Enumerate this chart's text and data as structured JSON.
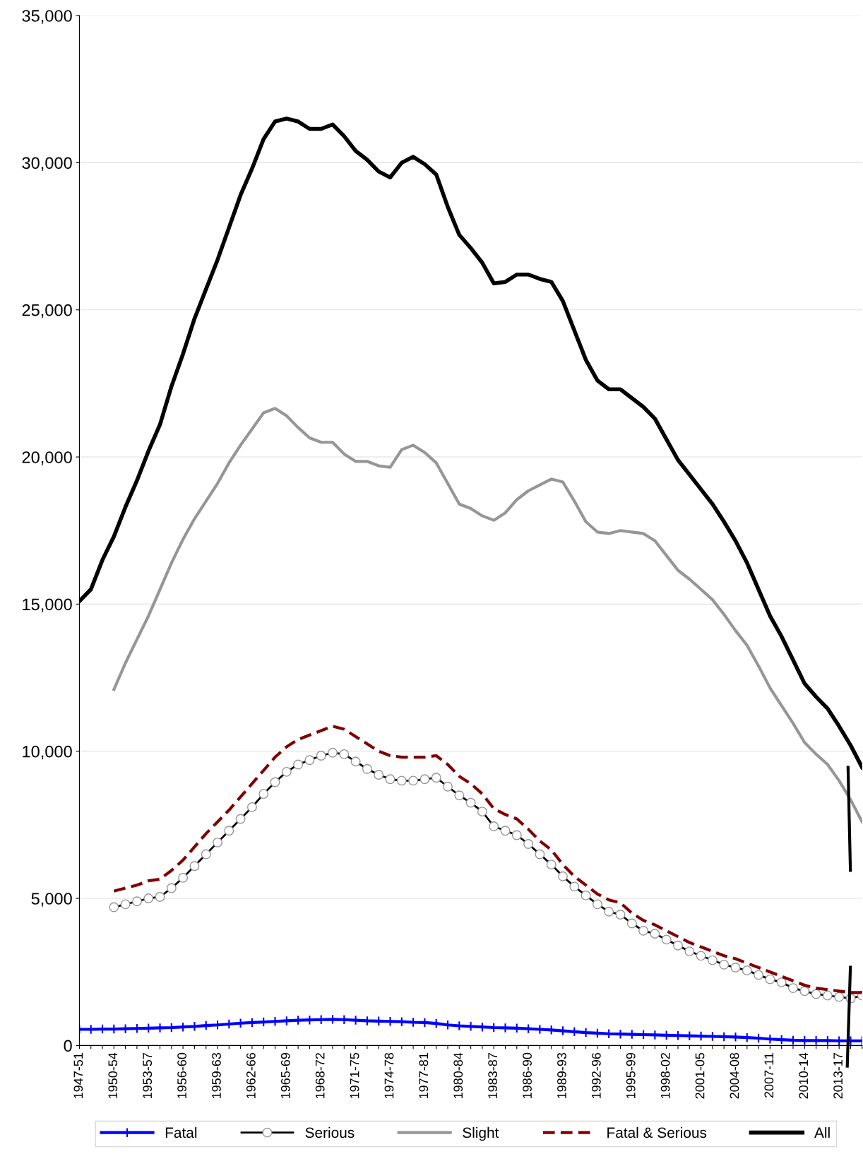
{
  "chart_data": {
    "type": "line",
    "categories": [
      "1947-51",
      null,
      null,
      "1950-54",
      null,
      null,
      "1953-57",
      null,
      null,
      "1956-60",
      null,
      null,
      "1959-63",
      null,
      null,
      "1962-66",
      null,
      null,
      "1965-69",
      null,
      null,
      "1968-72",
      null,
      null,
      "1971-75",
      null,
      null,
      "1974-78",
      null,
      null,
      "1977-81",
      null,
      null,
      "1980-84",
      null,
      null,
      "1983-87",
      null,
      null,
      "1986-90",
      null,
      null,
      "1989-93",
      null,
      null,
      "1992-96",
      null,
      null,
      "1995-99",
      null,
      null,
      "1998-02",
      null,
      null,
      "2001-05",
      null,
      null,
      "2004-08",
      null,
      null,
      "2007-11",
      null,
      null,
      "2010-14",
      null,
      null,
      "2013-17",
      null,
      null
    ],
    "series": [
      {
        "name": "Fatal",
        "color": "#0000ff",
        "marker": "cross",
        "line_style": "solid",
        "values": [
          550,
          550,
          560,
          560,
          570,
          580,
          590,
          600,
          610,
          630,
          650,
          680,
          700,
          730,
          760,
          780,
          800,
          820,
          840,
          860,
          870,
          880,
          890,
          880,
          860,
          840,
          830,
          820,
          810,
          790,
          780,
          750,
          700,
          670,
          650,
          630,
          610,
          600,
          590,
          570,
          550,
          530,
          500,
          470,
          440,
          420,
          400,
          390,
          380,
          370,
          360,
          350,
          340,
          330,
          320,
          310,
          300,
          290,
          270,
          250,
          220,
          200,
          180,
          170,
          170,
          170,
          160,
          160,
          160
        ]
      },
      {
        "name": "Serious",
        "color": "#000000",
        "marker": "circle",
        "line_style": "solid",
        "values": [
          null,
          null,
          null,
          4700,
          4800,
          4900,
          5000,
          5050,
          5350,
          5700,
          6100,
          6500,
          6900,
          7300,
          7700,
          8100,
          8550,
          8950,
          9300,
          9550,
          9700,
          9850,
          9950,
          9900,
          9650,
          9400,
          9200,
          9050,
          9000,
          9000,
          9050,
          9100,
          8800,
          8500,
          8250,
          7950,
          7450,
          7300,
          7150,
          6850,
          6500,
          6150,
          5750,
          5400,
          5100,
          4800,
          4550,
          4450,
          4150,
          3900,
          3800,
          3600,
          3400,
          3200,
          3050,
          2900,
          2750,
          2650,
          2550,
          2400,
          2250,
          2150,
          1950,
          1850,
          1750,
          1700,
          1650,
          1600,
          1700
        ]
      },
      {
        "name": "Slight",
        "color": "#969696",
        "marker": "none",
        "line_style": "solid",
        "values": [
          null,
          null,
          null,
          12100,
          13000,
          13800,
          14600,
          15500,
          16400,
          17200,
          17900,
          18500,
          19100,
          19800,
          20400,
          20950,
          21500,
          21650,
          21400,
          21000,
          20650,
          20500,
          20500,
          20100,
          19850,
          19850,
          19700,
          19650,
          20250,
          20400,
          20150,
          19800,
          19100,
          18400,
          18250,
          18000,
          17850,
          18100,
          18550,
          18850,
          19050,
          19250,
          19150,
          18500,
          17800,
          17450,
          17400,
          17500,
          17450,
          17400,
          17150,
          16650,
          16150,
          15850,
          15500,
          15150,
          14650,
          14100,
          13600,
          12900,
          12150,
          11550,
          10950,
          10300,
          9900,
          9550,
          9000,
          8350,
          7600
        ]
      },
      {
        "name": "Fatal & Serious",
        "color": "#800000",
        "marker": "none",
        "line_style": "dashed",
        "values": [
          null,
          null,
          null,
          5250,
          5350,
          5450,
          5600,
          5650,
          5950,
          6300,
          6750,
          7200,
          7600,
          8000,
          8450,
          8900,
          9350,
          9800,
          10150,
          10400,
          10550,
          10700,
          10850,
          10750,
          10500,
          10250,
          10000,
          9850,
          9800,
          9800,
          9800,
          9850,
          9550,
          9150,
          8900,
          8550,
          8050,
          7850,
          7700,
          7350,
          6950,
          6650,
          6150,
          5750,
          5450,
          5150,
          4950,
          4850,
          4500,
          4250,
          4100,
          3900,
          3700,
          3500,
          3350,
          3200,
          3050,
          2950,
          2800,
          2650,
          2500,
          2350,
          2200,
          2050,
          1950,
          1900,
          1850,
          1800,
          1800
        ]
      },
      {
        "name": "All",
        "color": "#000000",
        "marker": "none",
        "line_style": "solid",
        "values": [
          15100,
          15500,
          16500,
          17300,
          18300,
          19200,
          20200,
          21100,
          22400,
          23500,
          24700,
          25700,
          26700,
          27800,
          28900,
          29800,
          30800,
          31400,
          31500,
          31400,
          31150,
          31150,
          31300,
          30900,
          30400,
          30100,
          29700,
          29500,
          30000,
          30200,
          29950,
          29600,
          28500,
          27550,
          27100,
          26600,
          25900,
          25950,
          26200,
          26200,
          26050,
          25950,
          25300,
          24300,
          23300,
          22600,
          22300,
          22300,
          22000,
          21700,
          21300,
          20600,
          19900,
          19400,
          18900,
          18400,
          17800,
          17150,
          16400,
          15500,
          14600,
          13900,
          13100,
          12300,
          11850,
          11450,
          10850,
          10200,
          9450
        ]
      }
    ],
    "ylim": [
      0,
      35000
    ],
    "yticks": [
      0,
      {
        "value": 5000,
        "label": "5,000"
      },
      {
        "value": 10000,
        "label": "10,000"
      },
      {
        "value": 15000,
        "label": "15,000"
      },
      {
        "value": 20000,
        "label": "20,000"
      },
      {
        "value": 25000,
        "label": "25,000"
      },
      {
        "value": 30000,
        "label": "30,000"
      },
      {
        "value": 35000,
        "label": "35,000"
      }
    ],
    "grid": "y",
    "legend": "bottom"
  }
}
